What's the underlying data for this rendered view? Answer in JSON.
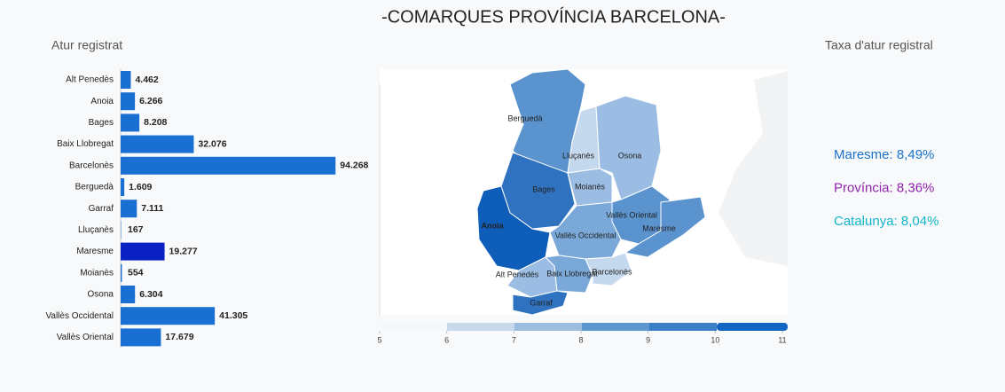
{
  "title": "-COMARQUES PROVÍNCIA BARCELONA-",
  "chart_data": {
    "type": "bar",
    "orientation": "horizontal",
    "subtitle": "Atur registrat",
    "categories": [
      "Alt Penedès",
      "Anoia",
      "Bages",
      "Baix Llobregat",
      "Barcelonès",
      "Berguedà",
      "Garraf",
      "Lluçanès",
      "Maresme",
      "Moianès",
      "Osona",
      "Vallès Occidental",
      "Vallès Oriental"
    ],
    "values": [
      4462,
      6266,
      8208,
      32076,
      94268,
      1609,
      7111,
      167,
      19277,
      554,
      6304,
      41305,
      17679
    ],
    "value_labels": [
      "4.462",
      "6.266",
      "8.208",
      "32.076",
      "94.268",
      "1.609",
      "7.111",
      "167",
      "19.277",
      "554",
      "6.304",
      "41.305",
      "17.679"
    ],
    "colors": [
      "#1a6fd2",
      "#1a6fd2",
      "#1a6fd2",
      "#1a6fd2",
      "#1a6fd2",
      "#1a6fd2",
      "#1a6fd2",
      "#1a6fd2",
      "#0a1fc4",
      "#1a6fd2",
      "#1a6fd2",
      "#1a6fd2",
      "#1a6fd2"
    ],
    "xlim": [
      0,
      100000
    ]
  },
  "map": {
    "labels": [
      "Berguedà",
      "Lluçanès",
      "Osona",
      "Bages",
      "Moianès",
      "Anoia",
      "Vallès Oriental",
      "Maresme",
      "Vallès Occidental",
      "Alt Penedès",
      "Baix Llobregat",
      "Barcelonès",
      "Garraf"
    ],
    "scale_ticks": [
      5,
      6,
      7,
      8,
      9,
      10,
      11
    ]
  },
  "stats": {
    "title": "Taxa d'atur registral",
    "items": [
      {
        "text": "Maresme: 8,49%",
        "color": "#1a73c9"
      },
      {
        "text": "Província: 8,36%",
        "color": "#8e24aa"
      },
      {
        "text": "Catalunya: 8,04%",
        "color": "#12b5cb"
      }
    ]
  }
}
